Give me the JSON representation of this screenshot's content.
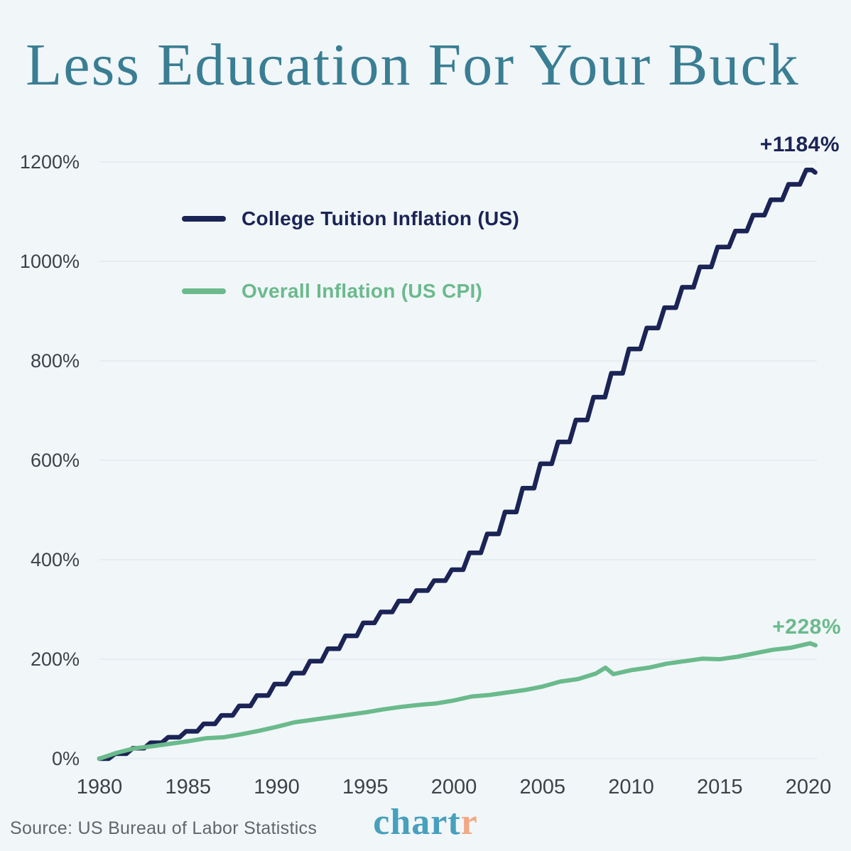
{
  "title": "Less Education For Your Buck",
  "source": "Source: US Bureau of Labor Statistics",
  "logo": {
    "part1": "chart",
    "part2": "r"
  },
  "colors": {
    "background": "#f1f6f9",
    "title": "#3a7e93",
    "tuition_line": "#1b2455",
    "cpi_line": "#6aba8c",
    "axis_text": "#3c4249",
    "gridline": "#e3eaee",
    "source_text": "#60666a",
    "logo_teal": "#47a0bc",
    "logo_orange": "#f2a983"
  },
  "chart_data": {
    "type": "line",
    "title": "Less Education For Your Buck",
    "xlabel": "",
    "ylabel": "",
    "grid": "horizontal",
    "legend_position": "upper-left-inside",
    "x_axis": {
      "tick_values": [
        1980,
        1985,
        1990,
        1995,
        2000,
        2005,
        2010,
        2015,
        2020
      ],
      "tick_labels": [
        "1980",
        "1985",
        "1990",
        "1995",
        "2000",
        "2005",
        "2010",
        "2015",
        "2020"
      ],
      "range": [
        1980,
        2020.4
      ]
    },
    "y_axis": {
      "tick_values": [
        0,
        200,
        400,
        600,
        800,
        1000,
        1200
      ],
      "tick_labels": [
        "0%",
        "200%",
        "400%",
        "600%",
        "800%",
        "1000%",
        "1200%"
      ],
      "range": [
        0,
        1240
      ],
      "unit": "cumulative percent change since 1980"
    },
    "series": [
      {
        "name": "College Tuition Inflation (US)",
        "color": "#1b2455",
        "line_style": "annual-step",
        "end_label": "+1184%",
        "points": [
          [
            1980,
            0
          ],
          [
            1981,
            10
          ],
          [
            1982,
            21
          ],
          [
            1983,
            32
          ],
          [
            1984,
            43
          ],
          [
            1985,
            55
          ],
          [
            1986,
            70
          ],
          [
            1987,
            87
          ],
          [
            1988,
            106
          ],
          [
            1989,
            127
          ],
          [
            1990,
            150
          ],
          [
            1991,
            172
          ],
          [
            1992,
            196
          ],
          [
            1993,
            221
          ],
          [
            1994,
            247
          ],
          [
            1995,
            273
          ],
          [
            1996,
            295
          ],
          [
            1997,
            317
          ],
          [
            1998,
            338
          ],
          [
            1999,
            358
          ],
          [
            2000,
            380
          ],
          [
            2001,
            414
          ],
          [
            2002,
            452
          ],
          [
            2003,
            496
          ],
          [
            2004,
            544
          ],
          [
            2005,
            593
          ],
          [
            2006,
            637
          ],
          [
            2007,
            681
          ],
          [
            2008,
            727
          ],
          [
            2009,
            775
          ],
          [
            2010,
            824
          ],
          [
            2011,
            866
          ],
          [
            2012,
            907
          ],
          [
            2013,
            948
          ],
          [
            2014,
            989
          ],
          [
            2015,
            1029
          ],
          [
            2016,
            1061
          ],
          [
            2017,
            1093
          ],
          [
            2018,
            1124
          ],
          [
            2019,
            1155
          ],
          [
            2020,
            1184
          ],
          [
            2020.2,
            1184
          ],
          [
            2020.38,
            1179
          ]
        ]
      },
      {
        "name": "Overall Inflation (US CPI)",
        "color": "#6aba8c",
        "line_style": "linear",
        "end_label": "+228%",
        "points": [
          [
            1980,
            0
          ],
          [
            1981,
            12
          ],
          [
            1982,
            21
          ],
          [
            1983,
            25
          ],
          [
            1984,
            30
          ],
          [
            1985,
            35
          ],
          [
            1986,
            41
          ],
          [
            1987,
            43
          ],
          [
            1988,
            49
          ],
          [
            1989,
            56
          ],
          [
            1990,
            64
          ],
          [
            1991,
            73
          ],
          [
            1992,
            78
          ],
          [
            1993,
            83
          ],
          [
            1994,
            88
          ],
          [
            1995,
            93
          ],
          [
            1996,
            99
          ],
          [
            1997,
            104
          ],
          [
            1998,
            108
          ],
          [
            1999,
            111
          ],
          [
            2000,
            117
          ],
          [
            2001,
            125
          ],
          [
            2002,
            128
          ],
          [
            2003,
            133
          ],
          [
            2004,
            138
          ],
          [
            2005,
            145
          ],
          [
            2006,
            155
          ],
          [
            2007,
            160
          ],
          [
            2008,
            171
          ],
          [
            2008.55,
            183
          ],
          [
            2009,
            170
          ],
          [
            2010,
            178
          ],
          [
            2011,
            183
          ],
          [
            2012,
            191
          ],
          [
            2013,
            196
          ],
          [
            2014,
            201
          ],
          [
            2015,
            200
          ],
          [
            2016,
            205
          ],
          [
            2017,
            212
          ],
          [
            2018,
            219
          ],
          [
            2019,
            223
          ],
          [
            2020.1,
            232
          ],
          [
            2020.4,
            228
          ]
        ]
      }
    ]
  }
}
